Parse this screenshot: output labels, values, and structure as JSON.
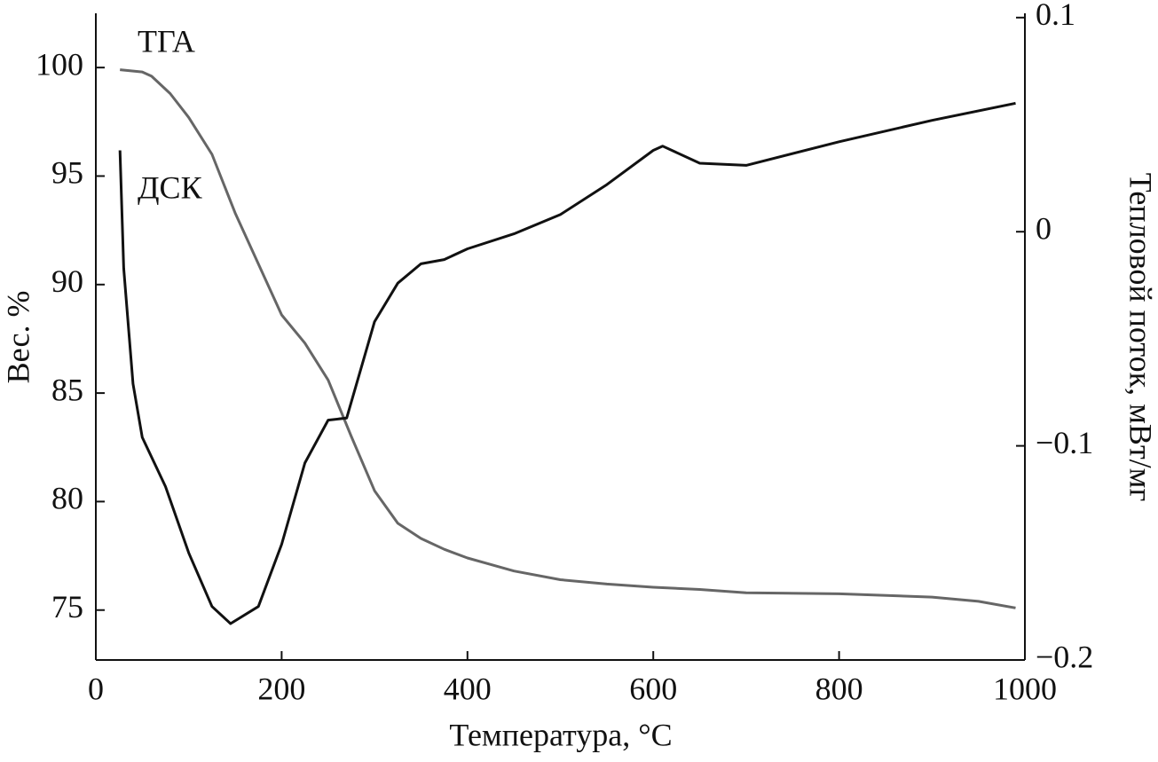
{
  "chart_data": {
    "type": "line",
    "xlabel": "Температура, °C",
    "ylabel": "Вес. %",
    "y2label": "Тепловой поток, мВт/мг",
    "xlim": [
      0,
      1000
    ],
    "xticks": [
      0,
      200,
      400,
      600,
      800,
      1000
    ],
    "ylim": [
      72.7,
      102.5
    ],
    "yticks": [
      75,
      80,
      85,
      90,
      95,
      100
    ],
    "y2lim": [
      -0.2,
      0.102
    ],
    "y2ticks": [
      {
        "value": -0.2,
        "label": "−0.2"
      },
      {
        "value": -0.1,
        "label": "−0.1"
      },
      0,
      0.1
    ],
    "series": [
      {
        "name": "ТГА",
        "color": "#666666",
        "x": [
          26,
          50,
          60,
          80,
          100,
          125,
          150,
          200,
          225,
          250,
          275,
          300,
          325,
          350,
          375,
          400,
          450,
          500,
          550,
          600,
          650,
          700,
          800,
          900,
          950,
          990
        ],
        "values": [
          99.9,
          99.8,
          99.6,
          98.8,
          97.7,
          96,
          93.3,
          88.6,
          87.3,
          85.6,
          83,
          80.5,
          79,
          78.3,
          77.8,
          77.4,
          76.8,
          76.4,
          76.2,
          76.05,
          75.95,
          75.8,
          75.75,
          75.6,
          75.4,
          75.1
        ]
      },
      {
        "name": "ДСК",
        "color": "#111111",
        "axis": "y2",
        "x": [
          26,
          30,
          40,
          50,
          75,
          100,
          125,
          145,
          175,
          200,
          225,
          250,
          270,
          300,
          325,
          350,
          375,
          400,
          450,
          500,
          550,
          600,
          610,
          650,
          700,
          800,
          900,
          990
        ],
        "values": [
          0.038,
          -0.017,
          -0.071,
          -0.096,
          -0.119,
          -0.15,
          -0.175,
          -0.183,
          -0.175,
          -0.146,
          -0.108,
          -0.088,
          -0.087,
          -0.042,
          -0.024,
          -0.015,
          -0.013,
          -0.008,
          -0.001,
          0.008,
          0.022,
          0.038,
          0.04,
          0.032,
          0.031,
          0.042,
          0.052,
          0.06
        ]
      }
    ]
  }
}
